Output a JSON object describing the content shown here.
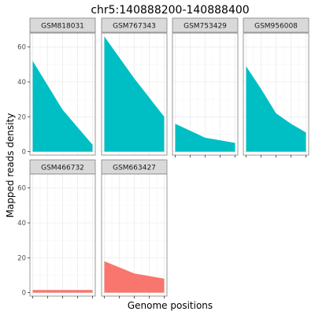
{
  "chart_data": {
    "type": "area",
    "title": "chr5:140888200-140888400",
    "xlabel": "Genome positions",
    "ylabel": "Mapped reads density",
    "ylim": [
      -2,
      68
    ],
    "y_ticks": [
      0,
      20,
      40,
      60
    ],
    "x_points": 5,
    "grid": true,
    "layout": "facet-wrap 4 columns",
    "colors": {
      "row1": "#00BFC4",
      "row2": "#F8766D"
    },
    "panels": [
      {
        "name": "GSM818031",
        "color": "#00BFC4",
        "values": [
          52,
          38,
          24,
          14,
          4
        ]
      },
      {
        "name": "GSM767343",
        "color": "#00BFC4",
        "values": [
          66,
          54,
          42,
          31,
          20
        ]
      },
      {
        "name": "GSM753429",
        "color": "#00BFC4",
        "values": [
          16,
          12,
          8,
          6.5,
          5
        ]
      },
      {
        "name": "GSM956008",
        "color": "#00BFC4",
        "values": [
          49,
          36,
          22,
          16,
          11
        ]
      },
      {
        "name": "GSM466732",
        "color": "#F8766D",
        "values": [
          1.5,
          1.5,
          1.5,
          1.5,
          1.5
        ]
      },
      {
        "name": "GSM663427",
        "color": "#F8766D",
        "values": [
          18,
          14.5,
          11,
          9.5,
          8
        ]
      }
    ]
  }
}
